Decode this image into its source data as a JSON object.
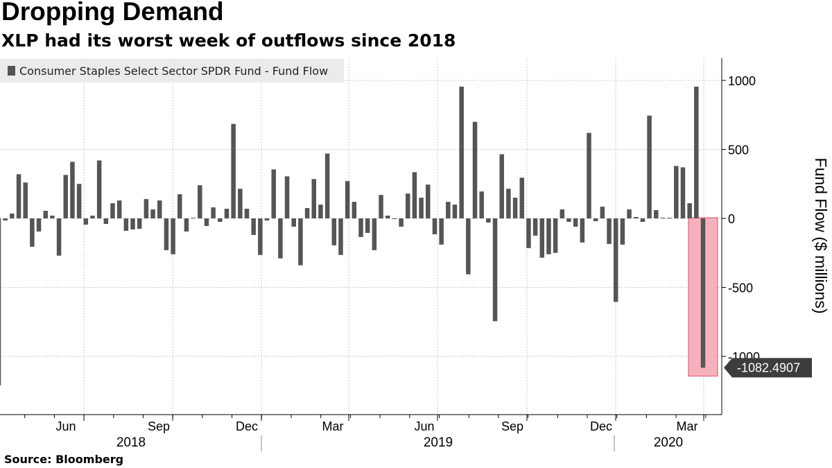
{
  "header": {
    "title": "Dropping Demand",
    "subtitle": "XLP had its worst week of outflows since 2018"
  },
  "footer": {
    "source": "Source: Bloomberg"
  },
  "colors": {
    "bar": "#555555",
    "highlight_fill": "#f7a3b0",
    "highlight_stroke": "#e0506a",
    "callout": "#3d3d3d",
    "grid": "#c8c8c8"
  },
  "chart_data": {
    "type": "bar",
    "legend": {
      "label": "Consumer Staples Select Sector SPDR Fund - Fund Flow",
      "placement": "top-left"
    },
    "ylabel": "Fund Flow ($ millions)",
    "ylim": [
      -1430,
      1170
    ],
    "yticks": [
      1000,
      500,
      0,
      -500,
      -1000
    ],
    "grid": true,
    "y_axis_side": "right",
    "highlight": {
      "label": "-1082.4907",
      "value": -1082.4907,
      "note": "latest week highlighted"
    },
    "x_month_labels": [
      "Jun",
      "Sep",
      "Dec",
      "Mar",
      "Jun",
      "Sep",
      "Dec",
      "Mar"
    ],
    "x_year_labels": [
      "2018",
      "2019",
      "2020"
    ],
    "values": [
      -1210,
      -15,
      35,
      320,
      260,
      -205,
      -95,
      55,
      20,
      -270,
      315,
      410,
      250,
      -45,
      20,
      420,
      -40,
      110,
      130,
      -90,
      -80,
      -75,
      140,
      65,
      130,
      -230,
      -260,
      175,
      -95,
      5,
      240,
      -55,
      80,
      -25,
      70,
      685,
      215,
      70,
      -120,
      -265,
      -15,
      355,
      -290,
      305,
      -60,
      -340,
      75,
      285,
      100,
      470,
      -195,
      -265,
      270,
      120,
      -135,
      -105,
      -230,
      170,
      20,
      -5,
      -60,
      180,
      335,
      150,
      245,
      -115,
      -190,
      120,
      100,
      955,
      -405,
      700,
      195,
      -30,
      -745,
      465,
      215,
      150,
      295,
      -215,
      -125,
      -285,
      -260,
      -250,
      65,
      -25,
      -60,
      -175,
      620,
      -20,
      85,
      -185,
      -605,
      -190,
      65,
      10,
      -25,
      745,
      60,
      5,
      5,
      380,
      370,
      110,
      955,
      -1082.4907
    ]
  }
}
